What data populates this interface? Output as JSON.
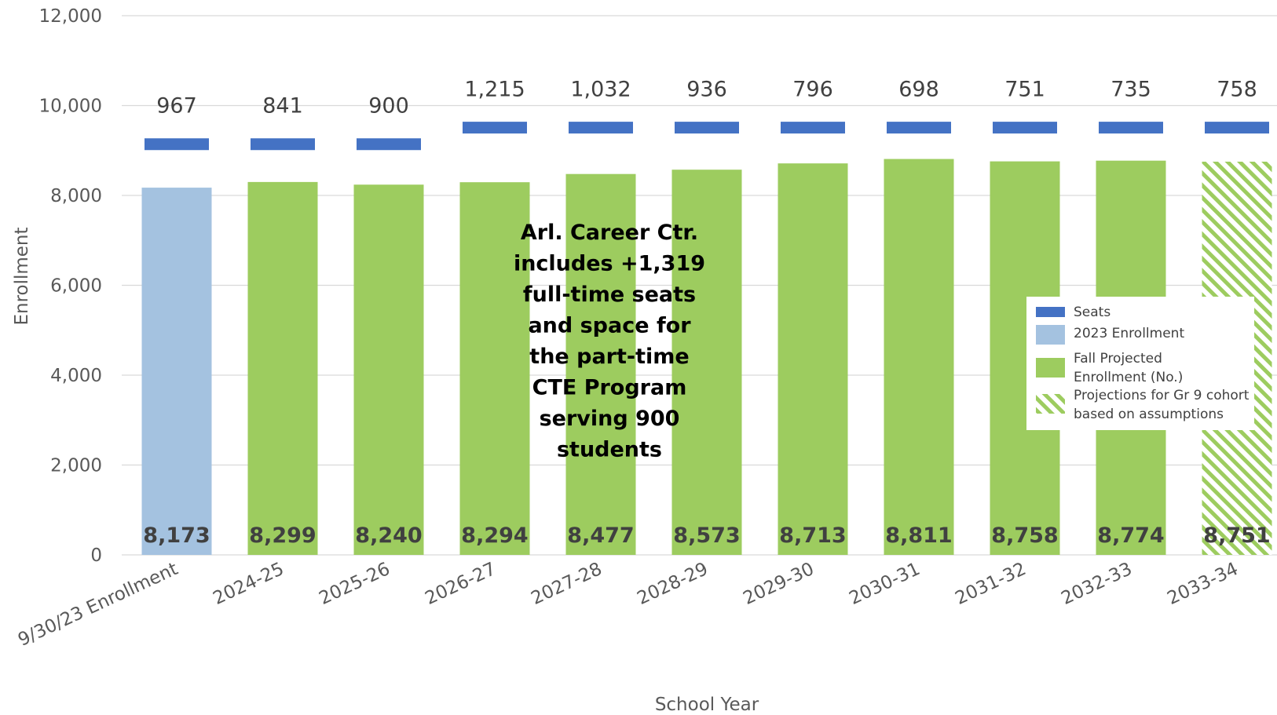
{
  "chart_data": {
    "type": "bar",
    "xlabel": "School Year",
    "ylabel": "Enrollment",
    "ylim": [
      0,
      12000
    ],
    "yticks": [
      0,
      2000,
      4000,
      6000,
      8000,
      10000,
      12000
    ],
    "ytick_labels": [
      "0",
      "2,000",
      "4,000",
      "6,000",
      "8,000",
      "10,000",
      "12,000"
    ],
    "grid": true,
    "legend_position": "right, middle",
    "categories": [
      "9/30/23 Enrollment",
      "2024-25",
      "2025-26",
      "2026-27",
      "2027-28",
      "2028-29",
      "2029-30",
      "2030-31",
      "2031-32",
      "2032-33",
      "2033-34"
    ],
    "series": [
      {
        "name": "Seats",
        "kind": "marker",
        "color": "#4472C4",
        "values": [
          9140,
          9140,
          9140,
          9509,
          9509,
          9509,
          9509,
          9509,
          9509,
          9509,
          9509
        ]
      },
      {
        "name": "2023 Enrollment",
        "color": "#A4C2E0",
        "values": [
          8173,
          null,
          null,
          null,
          null,
          null,
          null,
          null,
          null,
          null,
          null
        ]
      },
      {
        "name": "Fall Projected Enrollment (No.)",
        "color": "#9DCC5F",
        "values": [
          null,
          8299,
          8240,
          8294,
          8477,
          8573,
          8713,
          8811,
          8758,
          8774,
          null
        ]
      },
      {
        "name": "Projections for Gr 9 cohort based on assumptions",
        "color": "#9DCC5F",
        "pattern": "diagonal-hatch",
        "values": [
          null,
          null,
          null,
          null,
          null,
          null,
          null,
          null,
          null,
          null,
          8751
        ]
      }
    ],
    "value_labels": [
      "8,173",
      "8,299",
      "8,240",
      "8,294",
      "8,477",
      "8,573",
      "8,713",
      "8,811",
      "8,758",
      "8,774",
      "8,751"
    ],
    "gap_labels": [
      "967",
      "841",
      "900",
      "1,215",
      "1,032",
      "936",
      "796",
      "698",
      "751",
      "735",
      "758"
    ],
    "annotation": {
      "lines": [
        "Arl. Career Ctr.",
        "includes +1,319",
        "full-time seats",
        "and space for",
        "the part-time",
        "CTE Program",
        "serving 900",
        "students"
      ]
    },
    "legend": [
      {
        "key": "seats",
        "lines": [
          "Seats"
        ],
        "color": "#4472C4"
      },
      {
        "key": "enrollment-2023",
        "lines": [
          "2023 Enrollment"
        ],
        "color": "#A4C2E0"
      },
      {
        "key": "fall-projected",
        "lines": [
          "Fall Projected",
          "Enrollment (No.)"
        ],
        "color": "#9DCC5F"
      },
      {
        "key": "gr9-projections",
        "lines": [
          "Projections for Gr 9 cohort",
          "based on assumptions"
        ],
        "color": "#9DCC5F",
        "pattern": "diagonal-hatch"
      }
    ],
    "colors": {
      "grid": "#D9D9D9",
      "axis_text": "#595959",
      "label_text": "#404040"
    }
  }
}
